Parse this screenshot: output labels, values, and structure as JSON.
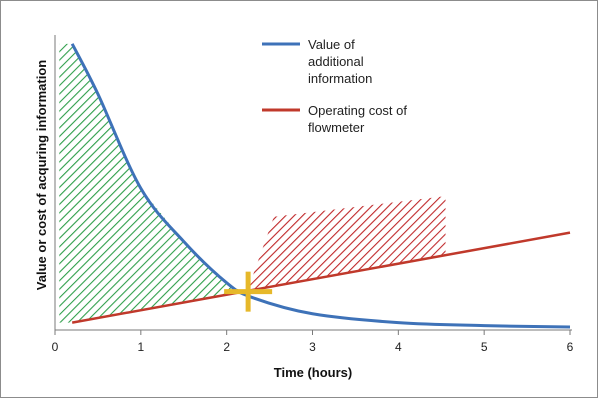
{
  "chart_data": {
    "type": "line",
    "xlabel": "Time (hours)",
    "ylabel": "Value or cost of acquring information",
    "xlim": [
      0,
      6
    ],
    "ylim": [
      0,
      1
    ],
    "x_ticks": [
      "0",
      "1",
      "2",
      "3",
      "4",
      "5",
      "6"
    ],
    "grid": false,
    "legend_position": "top-right",
    "series": [
      {
        "name": "Value of additional information",
        "color": "#3e72b8",
        "x": [
          0.2,
          0.5,
          1.0,
          1.5,
          2.0,
          2.3,
          3.0,
          4.0,
          5.0,
          6.0
        ],
        "y": [
          0.97,
          0.8,
          0.48,
          0.3,
          0.16,
          0.11,
          0.055,
          0.025,
          0.015,
          0.01
        ]
      },
      {
        "name": "Operating cost of flowmeter",
        "color": "#c0392b",
        "x": [
          0.2,
          6.0
        ],
        "y": [
          0.025,
          0.33
        ]
      }
    ],
    "annotations": [
      {
        "type": "crosshair-marker",
        "x": 2.25,
        "y": 0.13,
        "color": "#e6b82a"
      },
      {
        "type": "hatched-region",
        "color": "#2e9e4a",
        "from_x": 0.05,
        "to_x": 2.25,
        "between": "value curve and cost line"
      },
      {
        "type": "hatched-region",
        "color": "#c0292b",
        "from_x": 2.25,
        "to_x": 4.55,
        "between": "cost line and cap level"
      }
    ]
  }
}
